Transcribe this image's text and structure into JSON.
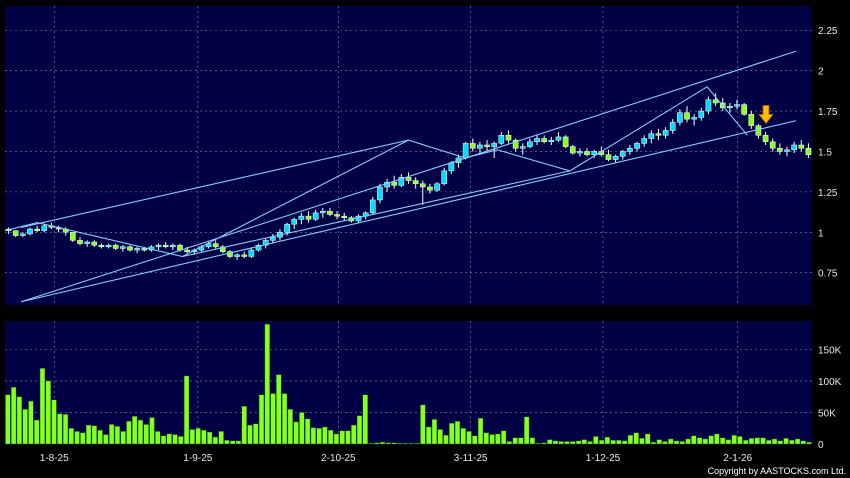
{
  "chart_data": [
    {
      "type": "candlestick",
      "grid": true,
      "y_axis_position": "right",
      "ylim": [
        0.55,
        2.4
      ],
      "yticks": [
        "0.75",
        "1",
        "1.25",
        "1.5",
        "1.75",
        "2",
        "2.25"
      ],
      "ytick_values": [
        0.75,
        1,
        1.25,
        1.5,
        1.75,
        2,
        2.25
      ],
      "colors": {
        "up": "#00ddff",
        "down": "#88ff22",
        "background": "#000044",
        "grid": "#8888aa",
        "trendline": "#88ccff",
        "arrow": "#ffbb00"
      },
      "candles": [
        [
          1.02,
          1.03,
          0.99,
          1.01
        ],
        [
          1.01,
          1.01,
          0.97,
          0.98
        ],
        [
          0.98,
          1.0,
          0.97,
          0.99
        ],
        [
          0.99,
          1.03,
          0.98,
          1.02
        ],
        [
          1.02,
          1.04,
          1.0,
          1.01
        ],
        [
          1.01,
          1.05,
          1.0,
          1.04
        ],
        [
          1.04,
          1.06,
          1.02,
          1.03
        ],
        [
          1.03,
          1.04,
          1.0,
          1.02
        ],
        [
          1.02,
          1.03,
          0.98,
          1.0
        ],
        [
          1.0,
          1.0,
          0.94,
          0.95
        ],
        [
          0.95,
          0.97,
          0.92,
          0.93
        ],
        [
          0.93,
          0.95,
          0.91,
          0.94
        ],
        [
          0.94,
          0.95,
          0.91,
          0.92
        ],
        [
          0.92,
          0.93,
          0.9,
          0.91
        ],
        [
          0.91,
          0.93,
          0.9,
          0.92
        ],
        [
          0.92,
          0.93,
          0.89,
          0.9
        ],
        [
          0.9,
          0.92,
          0.88,
          0.91
        ],
        [
          0.91,
          0.92,
          0.88,
          0.89
        ],
        [
          0.89,
          0.91,
          0.87,
          0.9
        ],
        [
          0.9,
          0.91,
          0.88,
          0.89
        ],
        [
          0.89,
          0.92,
          0.88,
          0.91
        ],
        [
          0.91,
          0.93,
          0.89,
          0.92
        ],
        [
          0.92,
          0.94,
          0.9,
          0.91
        ],
        [
          0.91,
          0.93,
          0.89,
          0.92
        ],
        [
          0.92,
          0.93,
          0.88,
          0.89
        ],
        [
          0.89,
          0.91,
          0.87,
          0.88
        ],
        [
          0.88,
          0.9,
          0.86,
          0.89
        ],
        [
          0.89,
          0.92,
          0.88,
          0.91
        ],
        [
          0.91,
          0.94,
          0.9,
          0.93
        ],
        [
          0.93,
          0.95,
          0.9,
          0.91
        ],
        [
          0.91,
          0.92,
          0.87,
          0.88
        ],
        [
          0.88,
          0.89,
          0.84,
          0.85
        ],
        [
          0.85,
          0.87,
          0.83,
          0.86
        ],
        [
          0.86,
          0.88,
          0.84,
          0.85
        ],
        [
          0.85,
          0.9,
          0.84,
          0.89
        ],
        [
          0.89,
          0.93,
          0.88,
          0.92
        ],
        [
          0.92,
          0.96,
          0.9,
          0.95
        ],
        [
          0.95,
          0.99,
          0.93,
          0.97
        ],
        [
          0.97,
          1.02,
          0.95,
          1.0
        ],
        [
          1.0,
          1.06,
          0.98,
          1.05
        ],
        [
          1.05,
          1.09,
          1.02,
          1.08
        ],
        [
          1.08,
          1.12,
          1.05,
          1.1
        ],
        [
          1.1,
          1.13,
          1.06,
          1.08
        ],
        [
          1.08,
          1.14,
          1.07,
          1.12
        ],
        [
          1.12,
          1.15,
          1.09,
          1.13
        ],
        [
          1.13,
          1.15,
          1.1,
          1.11
        ],
        [
          1.11,
          1.13,
          1.08,
          1.1
        ],
        [
          1.1,
          1.12,
          1.07,
          1.09
        ],
        [
          1.09,
          1.1,
          1.06,
          1.07
        ],
        [
          1.07,
          1.11,
          1.06,
          1.1
        ],
        [
          1.1,
          1.13,
          1.08,
          1.12
        ],
        [
          1.12,
          1.22,
          1.11,
          1.2
        ],
        [
          1.2,
          1.3,
          1.18,
          1.28
        ],
        [
          1.28,
          1.33,
          1.25,
          1.31
        ],
        [
          1.31,
          1.35,
          1.27,
          1.29
        ],
        [
          1.29,
          1.36,
          1.28,
          1.34
        ],
        [
          1.34,
          1.37,
          1.3,
          1.32
        ],
        [
          1.32,
          1.34,
          1.27,
          1.3
        ],
        [
          1.3,
          1.32,
          1.17,
          1.28
        ],
        [
          1.28,
          1.3,
          1.24,
          1.26
        ],
        [
          1.26,
          1.31,
          1.25,
          1.3
        ],
        [
          1.3,
          1.4,
          1.29,
          1.38
        ],
        [
          1.38,
          1.44,
          1.36,
          1.43
        ],
        [
          1.43,
          1.48,
          1.4,
          1.46
        ],
        [
          1.46,
          1.56,
          1.45,
          1.55
        ],
        [
          1.55,
          1.58,
          1.5,
          1.52
        ],
        [
          1.52,
          1.56,
          1.48,
          1.54
        ],
        [
          1.54,
          1.57,
          1.5,
          1.53
        ],
        [
          1.53,
          1.56,
          1.46,
          1.55
        ],
        [
          1.55,
          1.62,
          1.54,
          1.6
        ],
        [
          1.6,
          1.63,
          1.55,
          1.57
        ],
        [
          1.57,
          1.58,
          1.5,
          1.52
        ],
        [
          1.52,
          1.55,
          1.48,
          1.53
        ],
        [
          1.53,
          1.58,
          1.52,
          1.56
        ],
        [
          1.56,
          1.6,
          1.54,
          1.58
        ],
        [
          1.58,
          1.6,
          1.55,
          1.56
        ],
        [
          1.56,
          1.59,
          1.54,
          1.57
        ],
        [
          1.57,
          1.62,
          1.56,
          1.59
        ],
        [
          1.59,
          1.6,
          1.52,
          1.53
        ],
        [
          1.53,
          1.54,
          1.48,
          1.49
        ],
        [
          1.49,
          1.52,
          1.47,
          1.5
        ],
        [
          1.5,
          1.52,
          1.47,
          1.48
        ],
        [
          1.48,
          1.51,
          1.46,
          1.5
        ],
        [
          1.5,
          1.53,
          1.47,
          1.48
        ],
        [
          1.48,
          1.51,
          1.44,
          1.45
        ],
        [
          1.45,
          1.48,
          1.43,
          1.47
        ],
        [
          1.47,
          1.51,
          1.45,
          1.5
        ],
        [
          1.5,
          1.54,
          1.48,
          1.52
        ],
        [
          1.52,
          1.56,
          1.5,
          1.55
        ],
        [
          1.55,
          1.6,
          1.53,
          1.58
        ],
        [
          1.58,
          1.63,
          1.55,
          1.61
        ],
        [
          1.61,
          1.64,
          1.57,
          1.6
        ],
        [
          1.6,
          1.65,
          1.58,
          1.63
        ],
        [
          1.63,
          1.7,
          1.61,
          1.68
        ],
        [
          1.68,
          1.76,
          1.66,
          1.74
        ],
        [
          1.74,
          1.78,
          1.68,
          1.7
        ],
        [
          1.7,
          1.73,
          1.66,
          1.71
        ],
        [
          1.71,
          1.77,
          1.69,
          1.75
        ],
        [
          1.75,
          1.84,
          1.73,
          1.82
        ],
        [
          1.82,
          1.86,
          1.78,
          1.8
        ],
        [
          1.8,
          1.83,
          1.75,
          1.77
        ],
        [
          1.77,
          1.8,
          1.74,
          1.78
        ],
        [
          1.78,
          1.82,
          1.76,
          1.79
        ],
        [
          1.79,
          1.8,
          1.72,
          1.73
        ],
        [
          1.73,
          1.75,
          1.64,
          1.66
        ],
        [
          1.66,
          1.67,
          1.58,
          1.6
        ],
        [
          1.6,
          1.62,
          1.54,
          1.56
        ],
        [
          1.56,
          1.58,
          1.5,
          1.52
        ],
        [
          1.52,
          1.55,
          1.48,
          1.5
        ],
        [
          1.5,
          1.53,
          1.47,
          1.51
        ],
        [
          1.51,
          1.56,
          1.49,
          1.54
        ],
        [
          1.54,
          1.57,
          1.5,
          1.52
        ],
        [
          1.52,
          1.55,
          1.46,
          1.48
        ]
      ],
      "trendlines": [
        [
          [
            0.02,
            0.57
          ],
          [
            0.98,
            2.12
          ]
        ],
        [
          [
            0.02,
            1.03
          ],
          [
            0.5,
            1.57
          ]
        ],
        [
          [
            0.02,
            0.57
          ],
          [
            0.98,
            1.69
          ]
        ],
        [
          [
            0.22,
            0.85
          ],
          [
            0.7,
            1.38
          ]
        ]
      ],
      "pattern_lines": [
        [
          [
            0.0,
            1.01
          ],
          [
            0.04,
            1.06
          ],
          [
            0.22,
            0.85
          ],
          [
            0.5,
            1.57
          ],
          [
            0.57,
            1.46
          ],
          [
            0.61,
            1.51
          ],
          [
            0.7,
            1.38
          ],
          [
            0.87,
            1.9
          ],
          [
            0.92,
            1.6
          ]
        ]
      ],
      "arrow_marker": {
        "x": 0.943,
        "y": 1.71
      }
    },
    {
      "type": "bar",
      "grid": true,
      "y_axis_position": "right",
      "ylim": [
        0,
        195000
      ],
      "yticks": [
        "0",
        "50K",
        "100K",
        "150K"
      ],
      "ytick_values": [
        0,
        50000,
        100000,
        150000
      ],
      "colors": {
        "bar": "#88ff22",
        "bar_edge": "#005500",
        "background": "#000044"
      },
      "values": [
        78000,
        90000,
        75000,
        55000,
        68000,
        38000,
        120000,
        100000,
        70000,
        48000,
        47000,
        25000,
        20000,
        18000,
        30000,
        29000,
        22000,
        15000,
        31000,
        28000,
        20000,
        36000,
        44000,
        38000,
        31000,
        42000,
        20000,
        13000,
        16000,
        15000,
        12000,
        108000,
        23000,
        25000,
        22000,
        19000,
        11000,
        20000,
        6000,
        5000,
        5000,
        60000,
        30000,
        32000,
        78000,
        190000,
        80000,
        110000,
        80000,
        55000,
        35000,
        50000,
        40000,
        26000,
        25000,
        27000,
        22000,
        16000,
        21000,
        21000,
        30000,
        45000,
        78000,
        1000,
        2000,
        3000,
        2000,
        2000,
        1000,
        1000,
        1000,
        1000,
        62000,
        27000,
        39000,
        23000,
        14000,
        33000,
        36000,
        25000,
        20000,
        13000,
        41000,
        18000,
        15000,
        16000,
        21000,
        4000,
        10000,
        10000,
        43000,
        10000,
        1000,
        2000,
        7000,
        5000,
        4000,
        4000,
        4000,
        5000,
        7000,
        4000,
        12000,
        6000,
        11000,
        6000,
        6000,
        5000,
        14000,
        18000,
        9000,
        16000,
        3000,
        7000,
        4000,
        8000,
        5000,
        4000,
        8000,
        13000,
        10000,
        8000,
        13000,
        16000,
        10000,
        7000,
        14000,
        12000,
        6000,
        9000,
        10000,
        10000,
        6000,
        8000,
        5000,
        9000,
        6000,
        8000,
        5000,
        3000
      ]
    }
  ],
  "x_axis": {
    "ticks": [
      {
        "label": "1-8-25",
        "pos": 0.061
      },
      {
        "label": "1-9-25",
        "pos": 0.239
      },
      {
        "label": "2-10-25",
        "pos": 0.413
      },
      {
        "label": "3-11-25",
        "pos": 0.577
      },
      {
        "label": "1-12-25",
        "pos": 0.741
      },
      {
        "label": "2-1-26",
        "pos": 0.908
      }
    ]
  },
  "copyright": "Copyright by AASTOCKS.com Ltd."
}
